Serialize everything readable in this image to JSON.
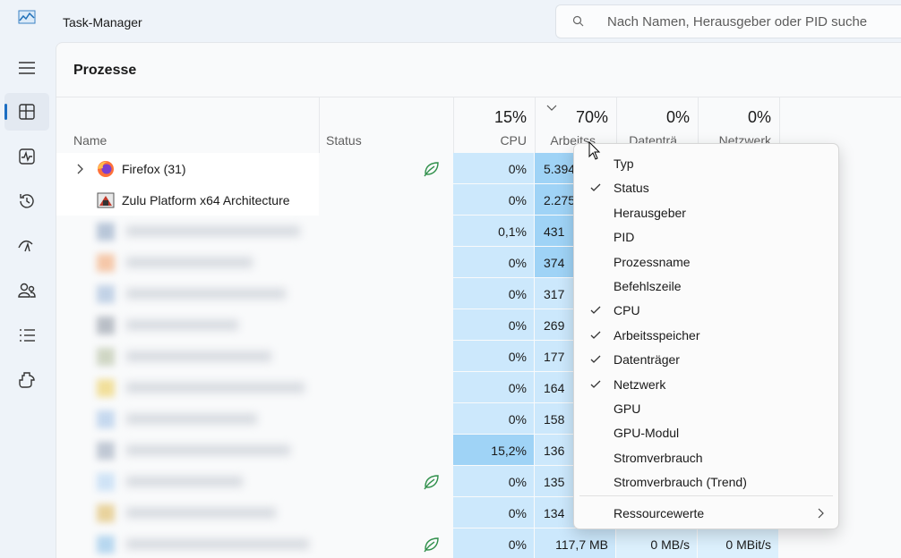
{
  "window": {
    "title": "Task-Manager",
    "search_placeholder": "Nach Namen, Herausgeber oder PID suche"
  },
  "page": {
    "title": "Prozesse"
  },
  "table": {
    "cell_color": "#cce8fc",
    "columns": [
      {
        "label": "Name"
      },
      {
        "label": "Status"
      },
      {
        "percent": "15%",
        "label": "CPU"
      },
      {
        "percent": "70%",
        "label": "Arbeitss…",
        "sorted": true
      },
      {
        "percent": "0%",
        "label": "Datenträ…"
      },
      {
        "percent": "0%",
        "label": "Netzwerk"
      }
    ],
    "rows": [
      {
        "name": "Firefox (31)",
        "icon": "firefox",
        "expandable": true,
        "efficiency_mode": true,
        "cpu": "0%",
        "memory": "5.394",
        "memory_color": "#9fd3f6"
      },
      {
        "name": "Zulu Platform x64 Architecture",
        "icon": "java",
        "cpu": "0%",
        "memory": "2.275",
        "memory_color": "#9fd3f6"
      },
      {
        "name": null,
        "cpu": "0,1%",
        "memory": "431",
        "memory_color": "#9fd3f6"
      },
      {
        "name": null,
        "cpu": "0%",
        "memory": "374",
        "memory_color": "#9fd3f6"
      },
      {
        "name": null,
        "cpu": "0%",
        "memory": "317"
      },
      {
        "name": null,
        "cpu": "0%",
        "memory": "269"
      },
      {
        "name": null,
        "cpu": "0%",
        "memory": "177"
      },
      {
        "name": null,
        "cpu": "0%",
        "memory": "164"
      },
      {
        "name": null,
        "cpu": "0%",
        "memory": "158"
      },
      {
        "name": null,
        "cpu": "15,2%",
        "cpu_color": "#9fd3f6",
        "memory": "136"
      },
      {
        "name": null,
        "efficiency_mode": true,
        "cpu": "0%",
        "memory": "135"
      },
      {
        "name": null,
        "cpu": "0%",
        "memory": "134"
      },
      {
        "name": null,
        "efficiency_mode": true,
        "cpu": "0%",
        "memory": "117,7 MB",
        "disk": "0 MB/s",
        "network": "0 MBit/s"
      }
    ]
  },
  "context_menu": {
    "items": [
      {
        "label": "Typ",
        "checked": false
      },
      {
        "label": "Status",
        "checked": true
      },
      {
        "label": "Herausgeber",
        "checked": false
      },
      {
        "label": "PID",
        "checked": false
      },
      {
        "label": "Prozessname",
        "checked": false
      },
      {
        "label": "Befehlszeile",
        "checked": false
      },
      {
        "label": "CPU",
        "checked": true
      },
      {
        "label": "Arbeitsspeicher",
        "checked": true
      },
      {
        "label": "Datenträger",
        "checked": true
      },
      {
        "label": "Netzwerk",
        "checked": true
      },
      {
        "label": "GPU",
        "checked": false
      },
      {
        "label": "GPU-Modul",
        "checked": false
      },
      {
        "label": "Stromverbrauch",
        "checked": false
      },
      {
        "label": "Stromverbrauch (Trend)",
        "checked": false
      }
    ],
    "submenu_item": "Ressourcewerte"
  }
}
